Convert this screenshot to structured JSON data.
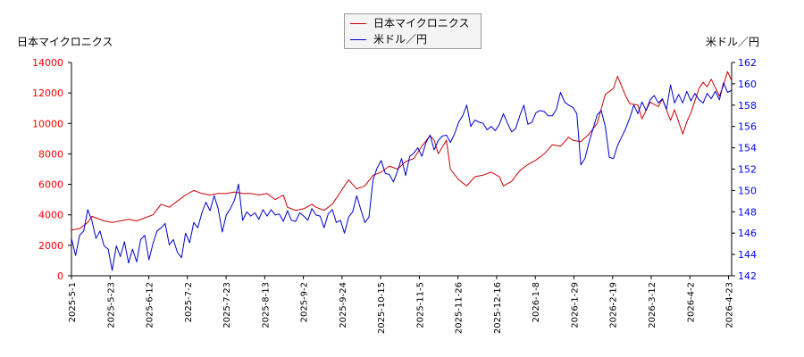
{
  "chart_data": {
    "type": "line",
    "left_axis_title": "日本マイクロニクス",
    "right_axis_title": "米ドル／円",
    "x_tick_labels": [
      "2025-5-1",
      "2025-5-23",
      "2025-6-12",
      "2025-7-2",
      "2025-7-23",
      "2025-8-13",
      "2025-9-2",
      "2025-9-24",
      "2025-10-15",
      "2025-11-5",
      "2025-11-26",
      "2025-12-16",
      "2026-1-8",
      "2026-1-29",
      "2026-2-19",
      "2026-3-12",
      "2026-4-2",
      "2026-4-23"
    ],
    "y_left": {
      "ticks": [
        0,
        2000,
        4000,
        6000,
        8000,
        10000,
        12000,
        14000
      ],
      "range": [
        0,
        14000
      ],
      "color": "#ff0000"
    },
    "y_right": {
      "ticks": [
        142,
        144,
        146,
        148,
        150,
        152,
        154,
        156,
        158,
        160,
        162
      ],
      "range": [
        142,
        162
      ],
      "color": "#0000ff"
    },
    "grid": false,
    "legend": "top-center",
    "series": [
      {
        "name": "日本マイクロニクス",
        "axis": "left",
        "color": "#cc0000",
        "values": [
          [
            0,
            3000
          ],
          [
            2,
            3100
          ],
          [
            4,
            3500
          ],
          [
            5,
            3900
          ],
          [
            6,
            3800
          ],
          [
            8,
            3600
          ],
          [
            10,
            3500
          ],
          [
            12,
            3600
          ],
          [
            14,
            3700
          ],
          [
            16,
            3600
          ],
          [
            18,
            3800
          ],
          [
            20,
            4000
          ],
          [
            22,
            4700
          ],
          [
            24,
            4500
          ],
          [
            26,
            4900
          ],
          [
            28,
            5300
          ],
          [
            30,
            5600
          ],
          [
            32,
            5400
          ],
          [
            34,
            5300
          ],
          [
            36,
            5400
          ],
          [
            38,
            5400
          ],
          [
            40,
            5500
          ],
          [
            42,
            5400
          ],
          [
            44,
            5400
          ],
          [
            46,
            5300
          ],
          [
            48,
            5400
          ],
          [
            50,
            5000
          ],
          [
            52,
            5300
          ],
          [
            53,
            4500
          ],
          [
            55,
            4300
          ],
          [
            57,
            4400
          ],
          [
            59,
            4700
          ],
          [
            60,
            4500
          ],
          [
            62,
            4300
          ],
          [
            64,
            4700
          ],
          [
            66,
            5500
          ],
          [
            68,
            6300
          ],
          [
            70,
            5700
          ],
          [
            72,
            5900
          ],
          [
            74,
            6600
          ],
          [
            76,
            6800
          ],
          [
            78,
            7200
          ],
          [
            80,
            7000
          ],
          [
            82,
            7500
          ],
          [
            84,
            7700
          ],
          [
            86,
            8500
          ],
          [
            88,
            9200
          ],
          [
            89,
            8900
          ],
          [
            90,
            8000
          ],
          [
            92,
            8900
          ],
          [
            93,
            7000
          ],
          [
            95,
            6300
          ],
          [
            97,
            5900
          ],
          [
            99,
            6500
          ],
          [
            101,
            6600
          ],
          [
            103,
            6800
          ],
          [
            105,
            6500
          ],
          [
            106,
            5900
          ],
          [
            108,
            6200
          ],
          [
            110,
            6900
          ],
          [
            112,
            7300
          ],
          [
            114,
            7600
          ],
          [
            116,
            8000
          ],
          [
            118,
            8600
          ],
          [
            120,
            8500
          ],
          [
            122,
            9100
          ],
          [
            123,
            8900
          ],
          [
            125,
            8800
          ],
          [
            127,
            9300
          ],
          [
            129,
            10000
          ],
          [
            131,
            11900
          ],
          [
            133,
            12300
          ],
          [
            134,
            13100
          ],
          [
            136,
            11800
          ],
          [
            137,
            11300
          ],
          [
            139,
            11200
          ],
          [
            140,
            10300
          ],
          [
            142,
            11400
          ],
          [
            144,
            11100
          ],
          [
            145,
            11600
          ],
          [
            147,
            10200
          ],
          [
            148,
            10900
          ],
          [
            150,
            9300
          ],
          [
            151,
            10100
          ],
          [
            152,
            10700
          ],
          [
            154,
            12300
          ],
          [
            155,
            12700
          ],
          [
            156,
            12400
          ],
          [
            157,
            12900
          ],
          [
            159,
            11800
          ],
          [
            160,
            12500
          ],
          [
            161,
            13400
          ],
          [
            162,
            12800
          ]
        ]
      },
      {
        "name": "米ドル／円",
        "axis": "right",
        "color": "#0000cc",
        "values": [
          [
            0,
            145.5
          ],
          [
            1,
            143.9
          ],
          [
            2,
            145.8
          ],
          [
            3,
            146.2
          ],
          [
            4,
            148.2
          ],
          [
            5,
            147.2
          ],
          [
            6,
            145.5
          ],
          [
            7,
            146.2
          ],
          [
            8,
            144.8
          ],
          [
            9,
            144.5
          ],
          [
            10,
            142.5
          ],
          [
            11,
            144.8
          ],
          [
            12,
            143.8
          ],
          [
            13,
            145.2
          ],
          [
            14,
            143.2
          ],
          [
            15,
            144.5
          ],
          [
            16,
            143.3
          ],
          [
            17,
            145.4
          ],
          [
            18,
            145.8
          ],
          [
            19,
            143.5
          ],
          [
            20,
            145.0
          ],
          [
            21,
            146.2
          ],
          [
            22,
            146.5
          ],
          [
            23,
            146.9
          ],
          [
            24,
            144.9
          ],
          [
            25,
            145.4
          ],
          [
            26,
            144.2
          ],
          [
            27,
            143.7
          ],
          [
            28,
            146.0
          ],
          [
            29,
            145.1
          ],
          [
            30,
            147.0
          ],
          [
            31,
            146.5
          ],
          [
            32,
            147.9
          ],
          [
            33,
            148.9
          ],
          [
            34,
            148.1
          ],
          [
            35,
            149.5
          ],
          [
            36,
            148.3
          ],
          [
            37,
            146.1
          ],
          [
            38,
            147.7
          ],
          [
            39,
            148.3
          ],
          [
            40,
            149.1
          ],
          [
            41,
            150.6
          ],
          [
            42,
            147.2
          ],
          [
            43,
            148.0
          ],
          [
            44,
            147.6
          ],
          [
            45,
            147.9
          ],
          [
            46,
            147.3
          ],
          [
            47,
            148.2
          ],
          [
            48,
            147.6
          ],
          [
            49,
            148.2
          ],
          [
            50,
            147.7
          ],
          [
            51,
            147.8
          ],
          [
            52,
            147.1
          ],
          [
            53,
            148.1
          ],
          [
            54,
            147.2
          ],
          [
            55,
            147.1
          ],
          [
            56,
            147.9
          ],
          [
            57,
            147.6
          ],
          [
            58,
            147.2
          ],
          [
            59,
            148.3
          ],
          [
            60,
            147.7
          ],
          [
            61,
            147.6
          ],
          [
            62,
            146.5
          ],
          [
            63,
            147.8
          ],
          [
            64,
            148.2
          ],
          [
            65,
            147.0
          ],
          [
            66,
            147.2
          ],
          [
            67,
            146.0
          ],
          [
            68,
            147.5
          ],
          [
            69,
            148.0
          ],
          [
            70,
            149.5
          ],
          [
            71,
            148.2
          ],
          [
            72,
            147.0
          ],
          [
            73,
            147.5
          ],
          [
            74,
            151.0
          ],
          [
            75,
            152.1
          ],
          [
            76,
            152.8
          ],
          [
            77,
            151.6
          ],
          [
            78,
            151.5
          ],
          [
            79,
            150.8
          ],
          [
            80,
            151.8
          ],
          [
            81,
            153.0
          ],
          [
            82,
            151.4
          ],
          [
            83,
            153.2
          ],
          [
            84,
            153.5
          ],
          [
            85,
            154.0
          ],
          [
            86,
            153.2
          ],
          [
            87,
            154.5
          ],
          [
            88,
            155.2
          ],
          [
            89,
            153.8
          ],
          [
            90,
            154.7
          ],
          [
            91,
            155.1
          ],
          [
            92,
            155.2
          ],
          [
            93,
            154.5
          ],
          [
            94,
            155.3
          ],
          [
            95,
            156.4
          ],
          [
            96,
            157.0
          ],
          [
            97,
            158.0
          ],
          [
            98,
            156.0
          ],
          [
            99,
            156.6
          ],
          [
            100,
            156.4
          ],
          [
            101,
            156.3
          ],
          [
            102,
            155.7
          ],
          [
            103,
            156.0
          ],
          [
            104,
            155.6
          ],
          [
            105,
            156.2
          ],
          [
            106,
            157.2
          ],
          [
            107,
            156.3
          ],
          [
            108,
            155.5
          ],
          [
            109,
            155.8
          ],
          [
            110,
            157.0
          ],
          [
            111,
            158.0
          ],
          [
            112,
            156.2
          ],
          [
            113,
            156.4
          ],
          [
            114,
            157.3
          ],
          [
            115,
            157.5
          ],
          [
            116,
            157.4
          ],
          [
            117,
            157.0
          ],
          [
            118,
            157.0
          ],
          [
            119,
            157.6
          ],
          [
            120,
            159.2
          ],
          [
            121,
            158.3
          ],
          [
            122,
            158.0
          ],
          [
            123,
            157.8
          ],
          [
            124,
            157.2
          ],
          [
            125,
            152.4
          ],
          [
            126,
            153.0
          ],
          [
            127,
            154.5
          ],
          [
            128,
            155.8
          ],
          [
            129,
            157.1
          ],
          [
            130,
            157.5
          ],
          [
            131,
            156.0
          ],
          [
            132,
            153.1
          ],
          [
            133,
            153.0
          ],
          [
            134,
            154.2
          ],
          [
            135,
            155.0
          ],
          [
            136,
            155.8
          ],
          [
            137,
            156.8
          ],
          [
            138,
            158.0
          ],
          [
            139,
            157.2
          ],
          [
            140,
            158.3
          ],
          [
            141,
            157.5
          ],
          [
            142,
            158.5
          ],
          [
            143,
            158.9
          ],
          [
            144,
            158.2
          ],
          [
            145,
            158.6
          ],
          [
            146,
            157.6
          ],
          [
            147,
            159.9
          ],
          [
            148,
            158.2
          ],
          [
            149,
            159.0
          ],
          [
            150,
            158.2
          ],
          [
            151,
            159.3
          ],
          [
            152,
            158.4
          ],
          [
            153,
            159.1
          ],
          [
            154,
            158.5
          ],
          [
            155,
            158.2
          ],
          [
            156,
            159.1
          ],
          [
            157,
            158.6
          ],
          [
            158,
            159.3
          ],
          [
            159,
            158.5
          ],
          [
            160,
            160.1
          ],
          [
            161,
            159.2
          ],
          [
            162,
            159.4
          ]
        ]
      }
    ]
  }
}
